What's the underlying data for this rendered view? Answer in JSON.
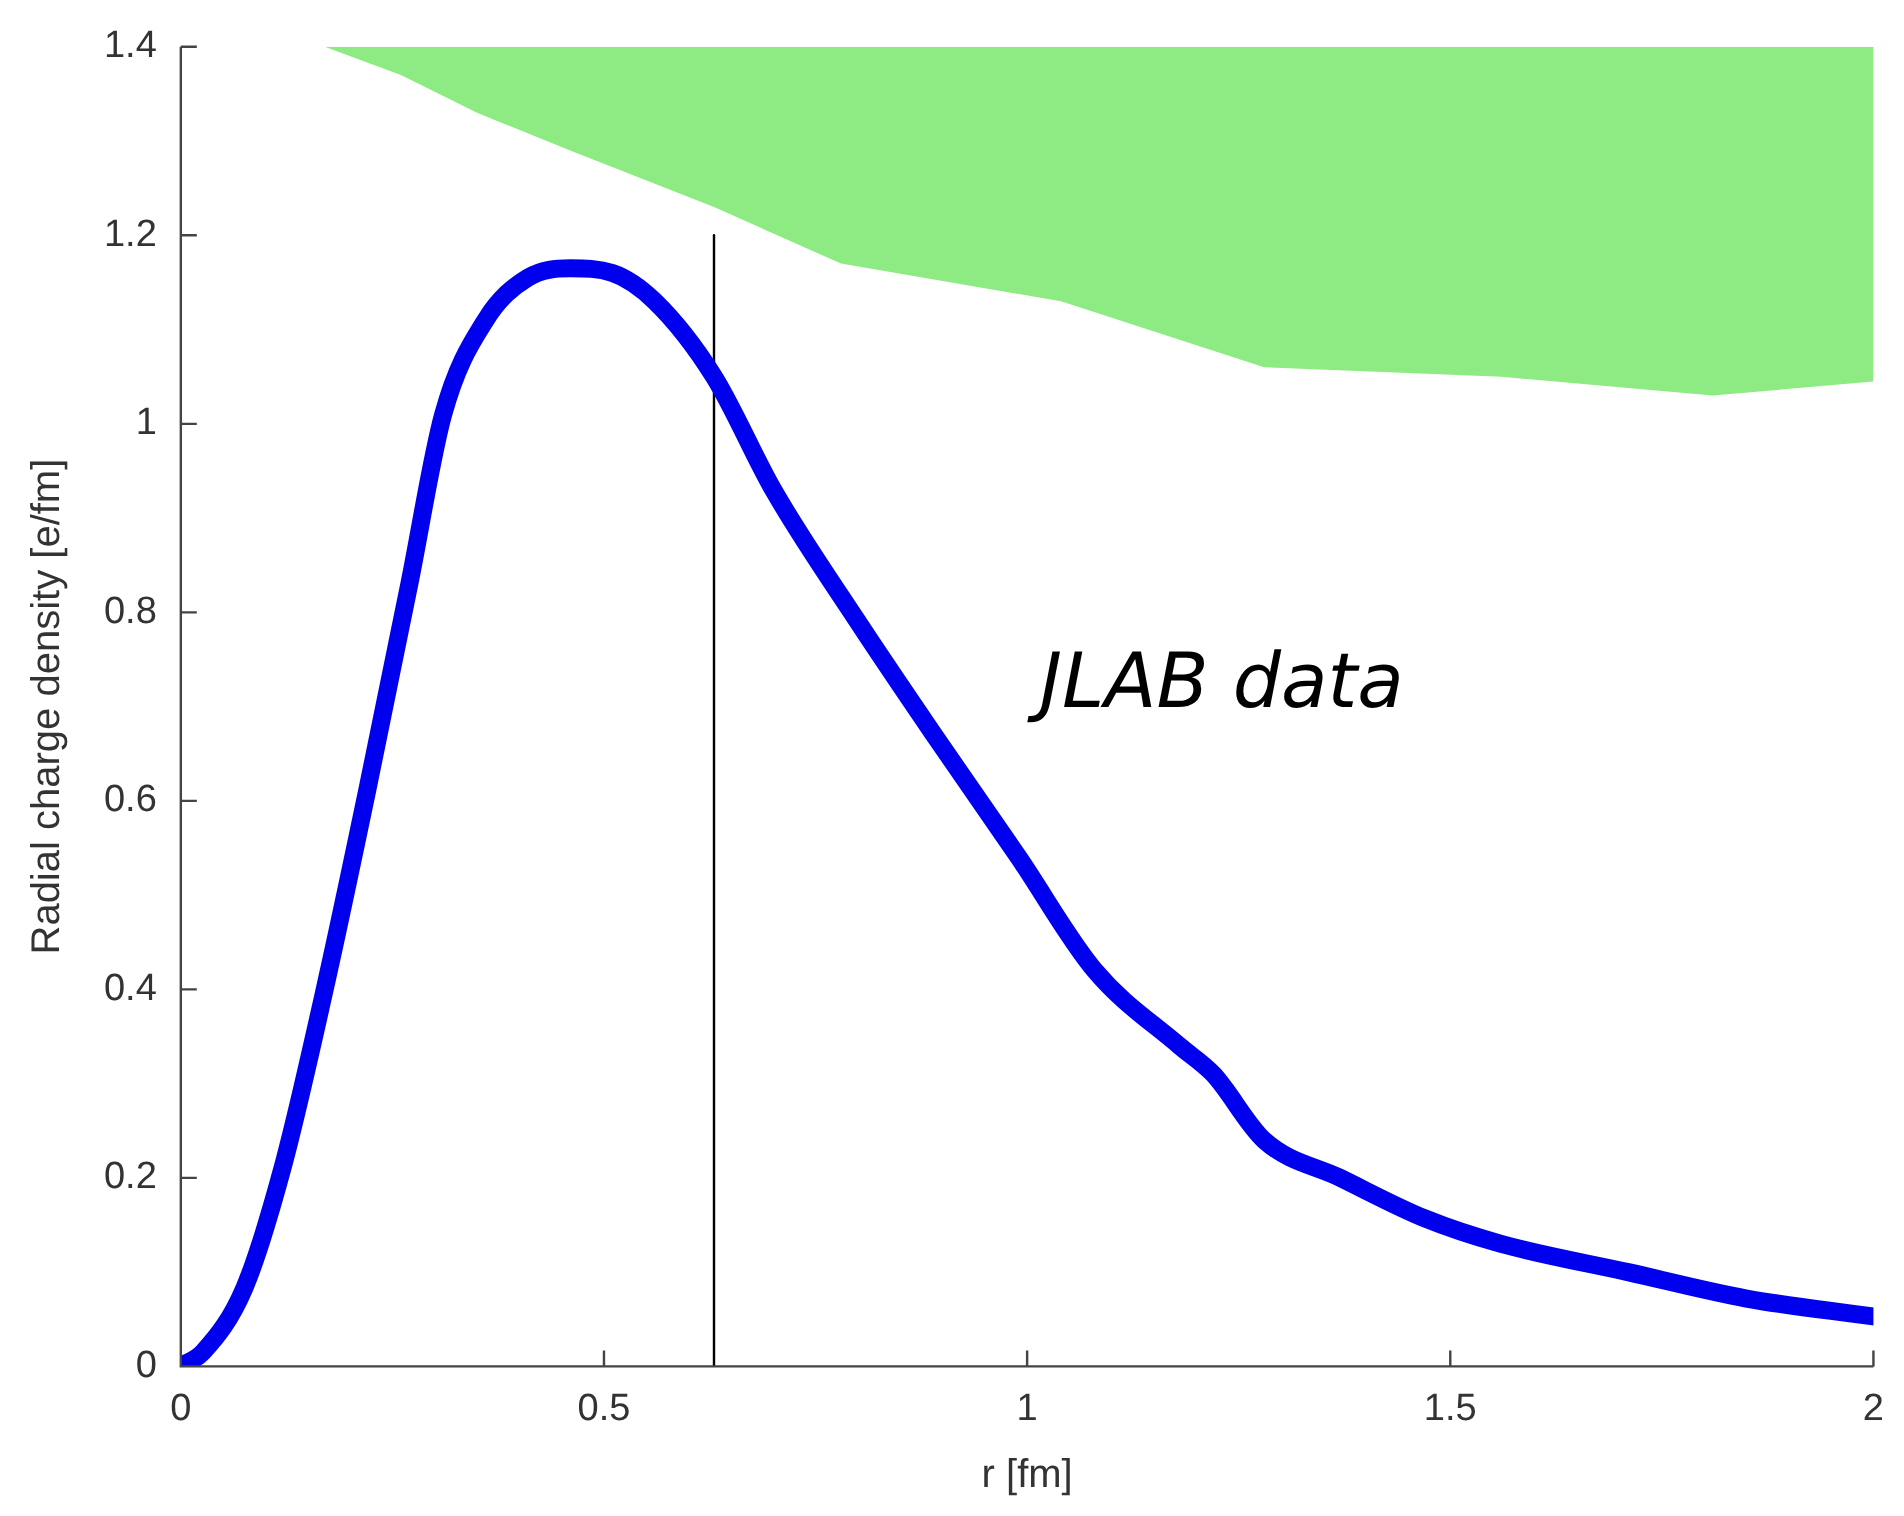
{
  "chart_data": {
    "type": "line",
    "xlabel": "r [fm]",
    "ylabel": "Radial charge density [e/fm]",
    "xlim": [
      0,
      2
    ],
    "xticks": [
      0,
      0.5,
      1,
      1.5,
      2
    ],
    "ylim": [
      0,
      1.4
    ],
    "yticks": [
      0,
      0.2,
      0.4,
      0.6,
      0.8,
      1,
      1.2,
      1.4
    ],
    "grid": false,
    "legend": false,
    "marker": "none",
    "annotations": [
      "JLAB data"
    ],
    "series": [
      {
        "color": "#8eeb84",
        "x": [
          0.17,
          0.26,
          0.35,
          0.46,
          0.63,
          0.78,
          1.04,
          1.28,
          1.56,
          1.81,
          2
        ],
        "values": [
          null,
          null,
          null,
          null,
          null,
          null,
          null,
          null,
          null,
          null,
          null
        ],
        "lower": [
          1.4,
          1.37,
          1.33,
          1.29,
          1.23,
          1.17,
          1.13,
          1.06,
          1.05,
          1.03,
          1.045
        ],
        "upper": [
          1.4,
          1.4,
          1.4,
          1.4,
          1.4,
          1.4,
          1.4,
          1.4,
          1.4,
          1.4,
          1.4
        ]
      },
      {
        "type": "line",
        "color": "#0000ee",
        "x": [
          0,
          0.026,
          0.075,
          0.12,
          0.17,
          0.22,
          0.27,
          0.31,
          0.36,
          0.41,
          0.46,
          0.51,
          0.56,
          0.63,
          0.7,
          0.8,
          0.89,
          0.99,
          1.08,
          1.18,
          1.22,
          1.28,
          1.37,
          1.47,
          1.56,
          1.71,
          1.85,
          2
        ],
        "values": [
          0,
          0.015,
          0.083,
          0.21,
          0.4,
          0.61,
          0.83,
          1.01,
          1.11,
          1.155,
          1.165,
          1.16,
          1.13,
          1.05,
          0.93,
          0.79,
          0.67,
          0.54,
          0.42,
          0.34,
          0.31,
          0.24,
          0.2,
          0.157,
          0.13,
          0.1,
          0.072,
          0.053
        ]
      },
      {
        "type": "line",
        "color": "#000000",
        "x": [
          0.63,
          0.63
        ],
        "values": [
          0,
          1.2
        ]
      }
    ]
  }
}
